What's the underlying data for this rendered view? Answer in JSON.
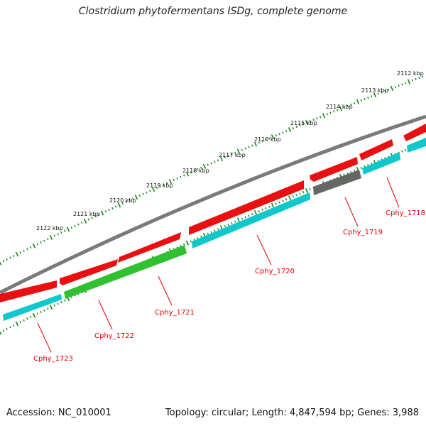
{
  "title": "Clostridium phytofermentans ISDg, complete genome",
  "footer": {
    "accession": "Accession: NC_010001",
    "summary": "Topology: circular; Length: 4,847,594 bp; Genes: 3,988"
  },
  "scale_labels": [
    "2112 kbp",
    "2113 kbp",
    "2114 kbp",
    "2115 kbp",
    "2116 kbp",
    "2117 kbp",
    "2118 kbp",
    "2119 kbp",
    "2120 kbp",
    "2121 kbp",
    "2122 kbp"
  ],
  "gene_labels": [
    "Cphy_1718",
    "Cphy_1719",
    "Cphy_1720",
    "Cphy_1721",
    "Cphy_1722",
    "Cphy_1723"
  ],
  "colors": {
    "backbone": "#7a7a7a",
    "cds": "#e81010",
    "gene": "#10c8cc",
    "rrna": "#30c030",
    "pseudo": "#666666",
    "ticks": "#118811",
    "label": "#e00000"
  }
}
